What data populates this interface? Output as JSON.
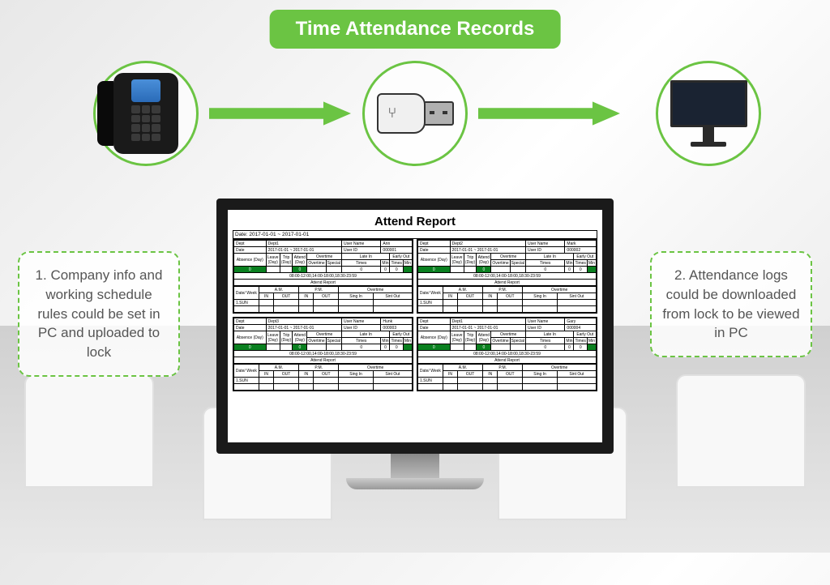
{
  "colors": {
    "accent": "#6bc443",
    "title_text": "#ffffff",
    "info_border": "#6bc443",
    "info_text": "#555555",
    "monitor_frame": "#1a1a1a",
    "background": "#f0f0f0",
    "green_cell": "#0a8020"
  },
  "title": "Time Attendance Records",
  "info_left": "1. Company info and working schedule rules could be set in PC and uploaded to lock",
  "info_right": "2. Attendance logs could be downloaded from lock to be viewed in PC",
  "flow": {
    "nodes": [
      {
        "id": "lock",
        "label": "Smart Lock Device"
      },
      {
        "id": "usb",
        "label": "USB Drive"
      },
      {
        "id": "pc",
        "label": "PC Monitor"
      }
    ],
    "edges": [
      {
        "from": "lock",
        "to": "usb",
        "color": "#6bc443"
      },
      {
        "from": "usb",
        "to": "pc",
        "color": "#6bc443"
      }
    ]
  },
  "report": {
    "title": "Attend Report",
    "date_range": "Date: 2017-01-01 ~ 2017-01-01",
    "time_band": "08:00-12:00,14:00-18:00,18:30-23:59",
    "sub_title": "Attend Report",
    "cols_summary": [
      "Absence (Day)",
      "Leave (Day)",
      "Trip (Day)",
      "Attend (Day)",
      "Overtime",
      "Late In",
      "Early Out"
    ],
    "cols_overtime": [
      "Overtime",
      "Special",
      "Times",
      "Min",
      "Times",
      "Min"
    ],
    "cols_detail": [
      "Date/ Week",
      "A.M.",
      "P.M.",
      "Overtime"
    ],
    "cols_detail_sub": [
      "IN",
      "OUT",
      "IN",
      "OUT",
      "Sing In",
      "Sint Out"
    ],
    "first_row": "1.SUN",
    "blocks": [
      {
        "dept_label": "Dept",
        "dept_val": "Dept1",
        "user_name_label": "User Name",
        "user_name": "Ann",
        "date_label": "Date",
        "date_range": "2017-01-01 ~ 2017-01-01",
        "user_id_label": "User ID",
        "user_id": "000001",
        "zero": "0"
      },
      {
        "dept_label": "Dept",
        "dept_val": "Dept2",
        "user_name_label": "User Name",
        "user_name": "Mark",
        "date_label": "Date",
        "date_range": "2017-01-01 ~ 2017-01-01",
        "user_id_label": "User ID",
        "user_id": "000002",
        "zero": "0"
      },
      {
        "dept_label": "Dept",
        "dept_val": "Dept3",
        "user_name_label": "User Name",
        "user_name": "Hunk",
        "date_label": "Date",
        "date_range": "2017-01-01 ~ 2017-01-01",
        "user_id_label": "User ID",
        "user_id": "000003",
        "zero": "0"
      },
      {
        "dept_label": "Dept",
        "dept_val": "Dept1",
        "user_name_label": "User Name",
        "user_name": "Gary",
        "date_label": "Date",
        "date_range": "2017-01-01 ~ 2017-01-01",
        "user_id_label": "User ID",
        "user_id": "000004",
        "zero": "0"
      }
    ]
  }
}
